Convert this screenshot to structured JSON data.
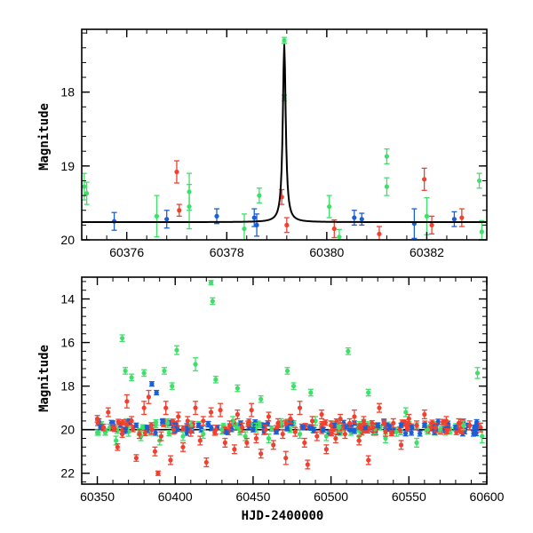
{
  "colors": {
    "red": "#f2402f",
    "green": "#3ee06a",
    "blue": "#1a5fd6",
    "model": "#000000",
    "axes": "#000000"
  },
  "chart_data": [
    {
      "type": "scatter",
      "panel": "top",
      "title": "",
      "xlabel": "",
      "ylabel": "Magnitude",
      "xlim": [
        60375.1,
        60383.2
      ],
      "ylim": [
        20.0,
        17.15
      ],
      "y_inverted": true,
      "xticks": [
        60376,
        60378,
        60380,
        60382
      ],
      "xtick_labels": [
        "60376",
        "60378",
        "60380",
        "60382"
      ],
      "yticks": [
        18,
        19,
        20
      ],
      "ytick_labels": [
        "18",
        "19",
        "20"
      ],
      "grid": false,
      "legend": "none",
      "series": [
        {
          "color": "green",
          "points": [
            [
              60375.15,
              19.28,
              0.18
            ],
            [
              60375.2,
              19.37,
              0.15
            ],
            [
              60376.6,
              19.68,
              0.28
            ],
            [
              60377.25,
              19.35,
              0.25
            ],
            [
              60377.25,
              19.55,
              0.3
            ],
            [
              60378.35,
              19.85,
              0.2
            ],
            [
              60378.65,
              19.4,
              0.1
            ],
            [
              60379.15,
              17.3,
              0.04
            ],
            [
              60379.15,
              18.08,
              0.04
            ],
            [
              60380.05,
              19.55,
              0.15
            ],
            [
              60380.25,
              19.96,
              0.1
            ],
            [
              60381.2,
              18.87,
              0.1
            ],
            [
              60381.2,
              19.28,
              0.12
            ],
            [
              60382.0,
              19.68,
              0.25
            ],
            [
              60383.05,
              19.2,
              0.1
            ],
            [
              60383.1,
              19.89,
              0.15
            ]
          ]
        },
        {
          "color": "red",
          "points": [
            [
              60377.0,
              19.08,
              0.15
            ],
            [
              60377.05,
              19.6,
              0.08
            ],
            [
              60379.1,
              19.42,
              0.1
            ],
            [
              60379.2,
              19.8,
              0.1
            ],
            [
              60380.15,
              19.85,
              0.12
            ],
            [
              60381.05,
              19.92,
              0.1
            ],
            [
              60381.95,
              19.18,
              0.15
            ],
            [
              60382.1,
              19.8,
              0.12
            ],
            [
              60382.7,
              19.7,
              0.12
            ]
          ]
        },
        {
          "color": "blue",
          "points": [
            [
              60375.75,
              19.75,
              0.12
            ],
            [
              60376.8,
              19.72,
              0.12
            ],
            [
              60377.8,
              19.68,
              0.1
            ],
            [
              60378.55,
              19.7,
              0.12
            ],
            [
              60378.6,
              19.8,
              0.15
            ],
            [
              60380.55,
              19.7,
              0.1
            ],
            [
              60380.7,
              19.72,
              0.08
            ],
            [
              60381.75,
              19.78,
              0.2
            ],
            [
              60382.55,
              19.72,
              0.1
            ]
          ]
        }
      ],
      "model_curve": {
        "type": "lorentzian_peak",
        "t0": 60379.15,
        "baseline": 19.76,
        "peak": 17.35,
        "width": 0.035
      }
    },
    {
      "type": "scatter",
      "panel": "bottom",
      "title": "",
      "xlabel": "HJD-2400000",
      "ylabel": "Magnitude",
      "xlim": [
        60340,
        60600
      ],
      "ylim": [
        22.5,
        13.0
      ],
      "y_inverted": true,
      "xticks": [
        60350,
        60400,
        60450,
        60500,
        60550,
        60600
      ],
      "xtick_labels": [
        "60350",
        "60400",
        "60450",
        "60500",
        "60550",
        "60600"
      ],
      "yticks": [
        14,
        16,
        18,
        20,
        22
      ],
      "ytick_labels": [
        "14",
        "16",
        "18",
        "20",
        "22"
      ],
      "grid": false,
      "legend": "none",
      "series": [
        {
          "color": "green",
          "points": [
            [
              60366,
              15.8,
              0.15
            ],
            [
              60368,
              17.3,
              0.15
            ],
            [
              60372,
              17.6,
              0.15
            ],
            [
              60380,
              17.4,
              0.15
            ],
            [
              60393,
              17.3,
              0.15
            ],
            [
              60398,
              18.0,
              0.15
            ],
            [
              60401,
              16.35,
              0.2
            ],
            [
              60413,
              17.0,
              0.3
            ],
            [
              60423,
              13.25,
              0.1
            ],
            [
              60424,
              14.1,
              0.15
            ],
            [
              60426,
              17.7,
              0.15
            ],
            [
              60440,
              18.1,
              0.15
            ],
            [
              60455,
              18.6,
              0.15
            ],
            [
              60472,
              17.3,
              0.15
            ],
            [
              60476,
              18.0,
              0.15
            ],
            [
              60487,
              18.3,
              0.15
            ],
            [
              60511,
              16.4,
              0.15
            ],
            [
              60524,
              18.3,
              0.15
            ],
            [
              60548,
              19.2,
              0.2
            ],
            [
              60570,
              20.0,
              0.15
            ],
            [
              60594,
              17.4,
              0.25
            ],
            [
              60597,
              20.3,
              0.3
            ],
            [
              60355,
              20.1,
              0.15
            ],
            [
              60358,
              19.9,
              0.15
            ],
            [
              60362,
              20.5,
              0.2
            ],
            [
              60370,
              20.1,
              0.2
            ],
            [
              60378,
              20.3,
              0.2
            ],
            [
              60385,
              20.0,
              0.2
            ],
            [
              60390,
              20.5,
              0.2
            ],
            [
              60395,
              19.7,
              0.2
            ],
            [
              60405,
              20.3,
              0.2
            ],
            [
              60410,
              19.8,
              0.2
            ],
            [
              60418,
              20.2,
              0.2
            ],
            [
              60430,
              20.0,
              0.2
            ],
            [
              60437,
              19.6,
              0.2
            ],
            [
              60445,
              20.3,
              0.2
            ],
            [
              60452,
              19.9,
              0.2
            ],
            [
              60460,
              20.4,
              0.2
            ],
            [
              60468,
              19.7,
              0.2
            ],
            [
              60480,
              20.2,
              0.2
            ],
            [
              60490,
              19.6,
              0.2
            ],
            [
              60497,
              20.3,
              0.2
            ],
            [
              60505,
              19.9,
              0.2
            ],
            [
              60518,
              20.3,
              0.2
            ],
            [
              60528,
              20.0,
              0.2
            ],
            [
              60535,
              20.4,
              0.2
            ],
            [
              60542,
              20.1,
              0.2
            ],
            [
              60555,
              20.6,
              0.2
            ],
            [
              60562,
              20.0,
              0.2
            ],
            [
              60585,
              19.8,
              0.2
            ]
          ]
        },
        {
          "color": "blue",
          "points": [
            [
              60385,
              17.9,
              0.1
            ],
            [
              60388,
              18.3,
              0.1
            ],
            [
              60352,
              19.9,
              0.1
            ],
            [
              60360,
              19.7,
              0.1
            ],
            [
              60368,
              20.0,
              0.1
            ],
            [
              60375,
              19.8,
              0.1
            ],
            [
              60382,
              19.9,
              0.1
            ],
            [
              60392,
              19.6,
              0.1
            ],
            [
              60400,
              19.8,
              0.1
            ],
            [
              60408,
              20.0,
              0.1
            ],
            [
              60415,
              19.8,
              0.1
            ],
            [
              60427,
              19.9,
              0.1
            ],
            [
              60433,
              20.1,
              0.1
            ],
            [
              60442,
              19.7,
              0.1
            ],
            [
              60450,
              20.0,
              0.1
            ],
            [
              60457,
              19.8,
              0.1
            ],
            [
              60465,
              20.1,
              0.1
            ],
            [
              60474,
              19.7,
              0.1
            ],
            [
              60482,
              19.9,
              0.1
            ],
            [
              60495,
              20.0,
              0.1
            ],
            [
              60502,
              19.8,
              0.1
            ],
            [
              60510,
              19.9,
              0.1
            ],
            [
              60515,
              19.7,
              0.1
            ],
            [
              60522,
              19.9,
              0.1
            ],
            [
              60530,
              19.8,
              0.1
            ],
            [
              60538,
              19.9,
              0.1
            ],
            [
              60545,
              19.8,
              0.1
            ],
            [
              60552,
              19.9,
              0.1
            ],
            [
              60560,
              19.8,
              0.1
            ],
            [
              60567,
              19.9,
              0.1
            ],
            [
              60575,
              19.8,
              0.1
            ],
            [
              60580,
              19.9,
              0.1
            ],
            [
              60588,
              19.8,
              0.1
            ],
            [
              60592,
              19.9,
              0.1
            ]
          ]
        },
        {
          "color": "red",
          "points": [
            [
              60350,
              19.5,
              0.15
            ],
            [
              60354,
              19.9,
              0.15
            ],
            [
              60357,
              19.2,
              0.2
            ],
            [
              60360,
              19.9,
              0.15
            ],
            [
              60363,
              20.8,
              0.15
            ],
            [
              60366,
              20.2,
              0.15
            ],
            [
              60369,
              18.7,
              0.3
            ],
            [
              60372,
              19.6,
              0.2
            ],
            [
              60375,
              21.3,
              0.15
            ],
            [
              60377,
              20.2,
              0.2
            ],
            [
              60380,
              19.0,
              0.3
            ],
            [
              60383,
              18.5,
              0.3
            ],
            [
              60385,
              20.0,
              0.2
            ],
            [
              60387,
              21.0,
              0.2
            ],
            [
              60389,
              22.0,
              0.1
            ],
            [
              60391,
              20.3,
              0.2
            ],
            [
              60394,
              19.0,
              0.3
            ],
            [
              60397,
              21.4,
              0.2
            ],
            [
              60399,
              20.0,
              0.2
            ],
            [
              60402,
              19.4,
              0.2
            ],
            [
              60405,
              20.8,
              0.2
            ],
            [
              60408,
              19.6,
              0.2
            ],
            [
              60410,
              20.1,
              0.2
            ],
            [
              60413,
              19.0,
              0.3
            ],
            [
              60416,
              20.5,
              0.2
            ],
            [
              60418,
              19.6,
              0.2
            ],
            [
              60420,
              21.5,
              0.2
            ],
            [
              60423,
              19.2,
              0.2
            ],
            [
              60426,
              20.0,
              0.2
            ],
            [
              60429,
              19.1,
              0.3
            ],
            [
              60432,
              20.6,
              0.2
            ],
            [
              60435,
              19.8,
              0.2
            ],
            [
              60438,
              20.9,
              0.2
            ],
            [
              60440,
              19.3,
              0.2
            ],
            [
              60443,
              19.9,
              0.2
            ],
            [
              60446,
              20.6,
              0.2
            ],
            [
              60449,
              19.1,
              0.3
            ],
            [
              60452,
              20.4,
              0.2
            ],
            [
              60455,
              21.1,
              0.2
            ],
            [
              60458,
              20.0,
              0.2
            ],
            [
              60460,
              19.4,
              0.2
            ],
            [
              60463,
              20.7,
              0.2
            ],
            [
              60466,
              19.7,
              0.2
            ],
            [
              60469,
              20.2,
              0.2
            ],
            [
              60471,
              21.3,
              0.3
            ],
            [
              60474,
              19.5,
              0.2
            ],
            [
              60477,
              20.1,
              0.2
            ],
            [
              60480,
              19.0,
              0.3
            ],
            [
              60483,
              20.6,
              0.2
            ],
            [
              60485,
              21.6,
              0.2
            ],
            [
              60488,
              19.6,
              0.2
            ],
            [
              60491,
              20.3,
              0.2
            ],
            [
              60494,
              19.3,
              0.2
            ],
            [
              60497,
              20.9,
              0.2
            ],
            [
              60500,
              19.8,
              0.2
            ],
            [
              60503,
              20.4,
              0.2
            ],
            [
              60506,
              19.5,
              0.2
            ],
            [
              60509,
              20.2,
              0.2
            ],
            [
              60512,
              19.7,
              0.2
            ],
            [
              60515,
              19.4,
              0.3
            ],
            [
              60518,
              20.5,
              0.2
            ],
            [
              60521,
              19.6,
              0.2
            ],
            [
              60524,
              21.4,
              0.2
            ],
            [
              60527,
              19.9,
              0.2
            ],
            [
              60531,
              19.0,
              0.2
            ],
            [
              60535,
              20.1,
              0.2
            ],
            [
              60540,
              19.7,
              0.2
            ],
            [
              60545,
              20.7,
              0.2
            ],
            [
              60550,
              19.5,
              0.2
            ],
            [
              60555,
              19.8,
              0.2
            ],
            [
              60560,
              19.3,
              0.2
            ],
            [
              60567,
              19.9,
              0.2
            ],
            [
              60574,
              19.6,
              0.2
            ],
            [
              60582,
              19.7,
              0.2
            ],
            [
              60589,
              19.8,
              0.2
            ],
            [
              60596,
              19.9,
              0.2
            ]
          ]
        }
      ],
      "band": {
        "center": 19.9,
        "halfwidth": 0.28,
        "count_per_color": 70,
        "seed": 7
      },
      "reference_line": 20.0
    }
  ]
}
